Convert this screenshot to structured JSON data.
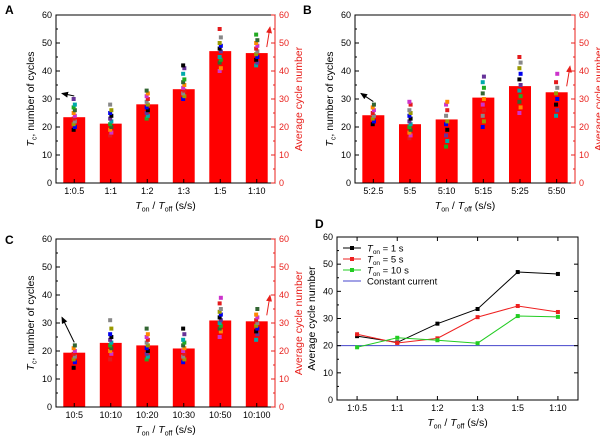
{
  "panels": [
    {
      "letter": "A"
    },
    {
      "letter": "B"
    },
    {
      "letter": "C"
    },
    {
      "letter": "D"
    }
  ],
  "colors": {
    "bar": "#ff0000",
    "right_axis": "#e8201c",
    "arrow_black": "#000000",
    "arrow_red": "#e8201c",
    "series_1s": "#000000",
    "series_5s": "#ee2020",
    "series_10s": "#22cc22",
    "constant": "#4444cc",
    "dots": [
      "#000000",
      "#e41a1c",
      "#22aa22",
      "#0000ee",
      "#cc33cc",
      "#00aaaa",
      "#999900",
      "#ff8800",
      "#663399",
      "#888888",
      "#336633"
    ]
  },
  "chart_data": [
    {
      "type": "bar",
      "panel": "A",
      "categories": [
        "1:0.5",
        "1:1",
        "1:2",
        "1:3",
        "1:5",
        "1:10"
      ],
      "values": [
        23.5,
        21.2,
        28.1,
        33.5,
        47.1,
        46.4
      ],
      "ylabel": "Tc, number of cycles",
      "y2label": "Average cycle number",
      "xlabel": "Ton / Toff (s/s)",
      "ylim": [
        0,
        60
      ],
      "y2lim": [
        0,
        60
      ],
      "yticks": [
        0,
        10,
        20,
        30,
        40,
        50,
        60
      ],
      "scatter": [
        [
          19,
          20,
          21,
          22,
          23,
          24,
          25,
          26,
          27,
          28,
          30
        ],
        [
          17,
          18,
          19,
          20,
          21,
          22,
          23,
          24,
          25,
          26,
          28
        ],
        [
          23,
          24,
          25,
          26,
          27,
          28,
          29,
          30,
          31,
          32,
          33
        ],
        [
          30,
          31,
          32,
          33,
          34,
          35,
          36,
          37,
          39,
          41,
          42
        ],
        [
          40,
          41,
          43,
          44,
          45,
          47,
          48,
          49,
          50,
          52,
          55
        ],
        [
          42,
          43,
          44,
          45,
          46,
          47,
          48,
          49,
          50,
          51,
          53
        ]
      ],
      "arrows": {
        "left_from_category": 0,
        "right_from_category": 5
      }
    },
    {
      "type": "bar",
      "panel": "B",
      "categories": [
        "5:2.5",
        "5:5",
        "5:10",
        "5:15",
        "5:25",
        "5:50"
      ],
      "values": [
        24.2,
        21.0,
        22.7,
        30.5,
        34.6,
        32.4
      ],
      "ylabel": "Tc, number of cycles",
      "y2label": "Average cycle number",
      "xlabel": "Ton / Toff (s/s)",
      "ylim": [
        0,
        60
      ],
      "y2lim": [
        0,
        60
      ],
      "yticks": [
        0,
        10,
        20,
        30,
        40,
        50,
        60
      ],
      "scatter": [
        [
          21,
          22,
          23,
          24,
          25,
          26,
          27,
          28
        ],
        [
          16,
          17,
          18,
          19,
          20,
          21,
          22,
          23,
          24,
          25,
          26,
          28,
          29
        ],
        [
          13,
          15,
          17,
          19,
          21,
          22,
          24,
          26,
          28,
          29
        ],
        [
          20,
          22,
          24,
          26,
          28,
          30,
          32,
          34,
          36,
          38
        ],
        [
          25,
          27,
          29,
          31,
          33,
          35,
          37,
          39,
          41,
          43,
          45
        ],
        [
          24,
          26,
          28,
          30,
          32,
          34,
          36,
          39
        ]
      ],
      "arrows": {
        "left_from_category": 0,
        "right_from_category": 5
      }
    },
    {
      "type": "bar",
      "panel": "C",
      "categories": [
        "10:5",
        "10:10",
        "10:20",
        "10:30",
        "10:50",
        "10:100"
      ],
      "values": [
        19.4,
        22.9,
        22.0,
        20.9,
        30.9,
        30.6
      ],
      "ylabel": "Tc, number of cycles",
      "y2label": "Average cycle number",
      "xlabel": "Ton / Toff (s/s)",
      "ylim": [
        0,
        60
      ],
      "y2lim": [
        0,
        60
      ],
      "yticks": [
        0,
        10,
        20,
        30,
        40,
        50,
        60
      ],
      "scatter": [
        [
          14,
          16,
          17,
          18,
          19,
          20,
          21,
          22
        ],
        [
          17,
          19,
          20,
          21,
          22,
          23,
          24,
          25,
          26,
          28,
          31
        ],
        [
          17,
          18,
          19,
          20,
          21,
          22,
          23,
          24,
          25,
          26,
          28
        ],
        [
          16,
          17,
          18,
          19,
          20,
          21,
          22,
          23,
          24,
          26,
          28
        ],
        [
          25,
          27,
          28,
          29,
          30,
          31,
          32,
          33,
          34,
          35,
          37,
          39
        ],
        [
          24,
          26,
          27,
          28,
          29,
          30,
          31,
          32,
          33,
          35
        ]
      ],
      "arrows": {
        "left_from_category": 0,
        "right_from_category": 5
      }
    },
    {
      "type": "line",
      "panel": "D",
      "categories": [
        "1:0.5",
        "1:1",
        "1:2",
        "1:3",
        "1:5",
        "1:10"
      ],
      "ylabel": "Average cycle number",
      "xlabel": "Ton / Toff (s/s)",
      "ylim": [
        0,
        60
      ],
      "yticks": [
        0,
        10,
        20,
        30,
        40,
        50,
        60
      ],
      "series": [
        {
          "name": "Ton = 1 s",
          "values": [
            23.5,
            21.2,
            28.1,
            33.5,
            47.1,
            46.4
          ]
        },
        {
          "name": "Ton = 5 s",
          "values": [
            24.2,
            21.0,
            22.7,
            30.5,
            34.6,
            32.4
          ]
        },
        {
          "name": "Ton = 10 s",
          "values": [
            19.4,
            22.9,
            22.0,
            20.9,
            30.9,
            30.6
          ]
        }
      ],
      "reference": {
        "name": "Constant current",
        "value": 20
      },
      "legend": "top-left"
    }
  ],
  "labels": {
    "tc_main": "T",
    "tc_sub": "c",
    "tc_rest": ", number of cycles",
    "avg": "Average cycle number",
    "x_t1": "T",
    "x_on": "on",
    "x_slash": " / ",
    "x_t2": "T",
    "x_off": "off",
    "x_unit": " (s/s)",
    "legend_T": "T",
    "legend_on": "on",
    "legend_vals": [
      " = 1 s",
      " = 5 s",
      " = 10 s"
    ],
    "legend_const": "Constant current"
  }
}
